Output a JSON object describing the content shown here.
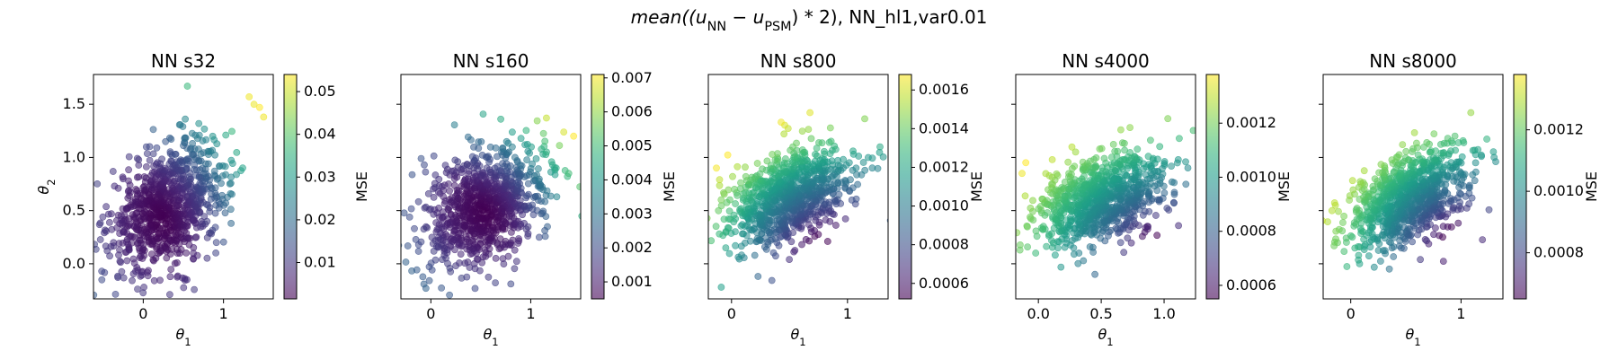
{
  "figure": {
    "title_prefix": "mean",
    "title_expr": "((u_NN − u_PSM) * 2)",
    "title_suffix": ", NN_hl1,var0.01"
  },
  "chart_data": [
    {
      "type": "scatter",
      "title": "NN s32",
      "xlabel": "θ1",
      "ylabel": "θ2",
      "colorbar_label": "MSE",
      "xlim": [
        -0.62,
        1.62
      ],
      "ylim": [
        -0.33,
        1.78
      ],
      "xticks": [
        0,
        1
      ],
      "yticks": [
        0.0,
        0.5,
        1.0,
        1.5
      ],
      "ytick_labels": [
        "0.0",
        "0.5",
        "1.0",
        "1.5"
      ],
      "cbar_range": [
        0.0015,
        0.054
      ],
      "cbar_ticks": [
        0.01,
        0.02,
        0.03,
        0.04,
        0.05
      ],
      "cbar_tick_labels": [
        "0.01",
        "0.02",
        "0.03",
        "0.04",
        "0.05"
      ],
      "cloud": {
        "cx": 0.32,
        "cy": 0.55,
        "sx": 0.36,
        "sy": 0.3,
        "rho": 0.35,
        "n": 900
      },
      "color_model": {
        "min_at": [
          0.25,
          0.45
        ],
        "dir": [
          1,
          1
        ],
        "curvature": 1.4
      },
      "outliers": [
        [
          0.55,
          1.67
        ],
        [
          1.38,
          1.5
        ],
        [
          1.45,
          1.47
        ],
        [
          1.5,
          1.38
        ],
        [
          1.32,
          1.57
        ]
      ]
    },
    {
      "type": "scatter",
      "title": "NN s160",
      "xlabel": "θ1",
      "ylabel": "",
      "colorbar_label": "MSE",
      "xlim": [
        -0.3,
        1.5
      ],
      "ylim": [
        -0.33,
        1.78
      ],
      "xticks": [
        0,
        1
      ],
      "yticks": [
        0.0,
        0.5,
        1.0,
        1.5
      ],
      "ytick_labels": [],
      "cbar_range": [
        0.0005,
        0.0071
      ],
      "cbar_ticks": [
        0.001,
        0.002,
        0.003,
        0.004,
        0.005,
        0.006,
        0.007
      ],
      "cbar_tick_labels": [
        "0.001",
        "0.002",
        "0.003",
        "0.004",
        "0.005",
        "0.006",
        "0.007"
      ],
      "cloud": {
        "cx": 0.55,
        "cy": 0.55,
        "sx": 0.3,
        "sy": 0.28,
        "rho": 0.3,
        "n": 900
      },
      "color_model": {
        "min_at": [
          0.55,
          0.5
        ],
        "dir": [
          1,
          1
        ],
        "curvature": 1.5
      },
      "outliers": [
        [
          1.43,
          1.2
        ],
        [
          1.38,
          0.85
        ],
        [
          0.7,
          1.36
        ],
        [
          -0.05,
          -0.23
        ]
      ]
    },
    {
      "type": "scatter",
      "title": "NN s800",
      "xlabel": "θ1",
      "ylabel": "",
      "colorbar_label": "MSE",
      "xlim": [
        -0.2,
        1.35
      ],
      "ylim": [
        -0.33,
        1.78
      ],
      "xticks": [
        0,
        1
      ],
      "yticks": [
        0.0,
        0.5,
        1.0,
        1.5
      ],
      "ytick_labels": [],
      "cbar_range": [
        0.00052,
        0.00168
      ],
      "cbar_ticks": [
        0.0006,
        0.0008,
        0.001,
        0.0012,
        0.0014,
        0.0016
      ],
      "cbar_tick_labels": [
        "0.0006",
        "0.0008",
        "0.0010",
        "0.0012",
        "0.0014",
        "0.0016"
      ],
      "cloud": {
        "cx": 0.5,
        "cy": 0.62,
        "sx": 0.27,
        "sy": 0.24,
        "rho": 0.4,
        "n": 900
      },
      "color_model": {
        "min_at": [
          0.75,
          0.2
        ],
        "dir": [
          -1,
          1
        ],
        "curvature": 1.0
      },
      "outliers": [
        [
          -0.13,
          0.9
        ],
        [
          1.28,
          1.1
        ],
        [
          -0.05,
          0.15
        ]
      ]
    },
    {
      "type": "scatter",
      "title": "NN s4000",
      "xlabel": "θ1",
      "ylabel": "",
      "colorbar_label": "MSE",
      "xlim": [
        -0.18,
        1.25
      ],
      "ylim": [
        -0.33,
        1.78
      ],
      "xticks": [
        0.0,
        0.5,
        1.0
      ],
      "yticks": [
        0.0,
        0.5,
        1.0,
        1.5
      ],
      "ytick_labels": [],
      "cbar_range": [
        0.00055,
        0.00138
      ],
      "cbar_ticks": [
        0.0006,
        0.0008,
        0.001,
        0.0012
      ],
      "cbar_tick_labels": [
        "0.0006",
        "0.0008",
        "0.0010",
        "0.0012"
      ],
      "cloud": {
        "cx": 0.5,
        "cy": 0.62,
        "sx": 0.25,
        "sy": 0.22,
        "rho": 0.4,
        "n": 900
      },
      "color_model": {
        "min_at": [
          0.9,
          0.25
        ],
        "dir": [
          -1,
          1
        ],
        "curvature": 0.8
      },
      "outliers": [
        [
          -0.1,
          0.95
        ],
        [
          0.45,
          -0.1
        ],
        [
          -0.13,
          0.85
        ]
      ]
    },
    {
      "type": "scatter",
      "title": "NN s8000",
      "xlabel": "θ1",
      "ylabel": "",
      "colorbar_label": "MSE",
      "xlim": [
        -0.25,
        1.38
      ],
      "ylim": [
        -0.33,
        1.78
      ],
      "xticks": [
        0,
        1
      ],
      "yticks": [
        0.0,
        0.5,
        1.0,
        1.5
      ],
      "ytick_labels": [],
      "cbar_range": [
        0.00065,
        0.00138
      ],
      "cbar_ticks": [
        0.0008,
        0.001,
        0.0012
      ],
      "cbar_tick_labels": [
        "0.0008",
        "0.0010",
        "0.0012"
      ],
      "cloud": {
        "cx": 0.52,
        "cy": 0.62,
        "sx": 0.27,
        "sy": 0.23,
        "rho": 0.4,
        "n": 900
      },
      "color_model": {
        "min_at": [
          0.9,
          0.25
        ],
        "dir": [
          -1,
          1
        ],
        "curvature": 0.85
      },
      "outliers": [
        [
          -0.17,
          0.5
        ],
        [
          1.3,
          1.0
        ],
        [
          0.35,
          -0.05
        ]
      ]
    }
  ]
}
